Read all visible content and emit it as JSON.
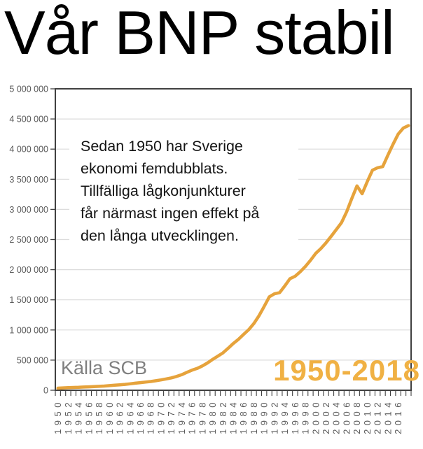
{
  "page": {
    "title": "Vår BNP stabil"
  },
  "chart": {
    "source_label": "Källa SCB",
    "period_label": "1950-2018",
    "annotation_lines": [
      "Sedan 1950 har Sverige",
      "ekonomi femdubblats.",
      "Tillfälliga lågkonjunkturer",
      "får närmast ingen effekt på",
      "den långa utvecklingen."
    ],
    "colors": {
      "line": "#E6A33C",
      "period_text": "#F0B144",
      "grid": "#DCDCDC",
      "axis": "#404040",
      "tick_label": "#595959",
      "source_text": "#7F7F7F"
    }
  },
  "chart_data": {
    "type": "line",
    "title": "Vår BNP stabil",
    "xlabel": "",
    "ylabel": "",
    "x": [
      1950,
      1951,
      1952,
      1953,
      1954,
      1955,
      1956,
      1957,
      1958,
      1959,
      1960,
      1961,
      1962,
      1963,
      1964,
      1965,
      1966,
      1967,
      1968,
      1969,
      1970,
      1971,
      1972,
      1973,
      1974,
      1975,
      1976,
      1977,
      1978,
      1979,
      1980,
      1981,
      1982,
      1983,
      1984,
      1985,
      1986,
      1987,
      1988,
      1989,
      1990,
      1991,
      1992,
      1993,
      1994,
      1995,
      1996,
      1997,
      1998,
      1999,
      2000,
      2001,
      2002,
      2003,
      2004,
      2005,
      2006,
      2007,
      2008,
      2009,
      2010,
      2011,
      2012,
      2013,
      2014,
      2015,
      2016,
      2017,
      2018
    ],
    "series": [
      {
        "name": "BNP",
        "values": [
          35000,
          40000,
          44000,
          46000,
          49000,
          53000,
          57000,
          61000,
          65000,
          70000,
          76000,
          83000,
          90000,
          97000,
          107000,
          117000,
          127000,
          136000,
          145000,
          158000,
          172000,
          188000,
          205000,
          228000,
          258000,
          297000,
          333000,
          362000,
          402000,
          452000,
          512000,
          565000,
          620000,
          695000,
          775000,
          845000,
          925000,
          1005000,
          1105000,
          1235000,
          1390000,
          1550000,
          1600000,
          1620000,
          1730000,
          1850000,
          1890000,
          1965000,
          2055000,
          2155000,
          2270000,
          2350000,
          2445000,
          2555000,
          2665000,
          2780000,
          2960000,
          3180000,
          3390000,
          3260000,
          3460000,
          3650000,
          3690000,
          3710000,
          3900000,
          4080000,
          4250000,
          4350000,
          4390000
        ]
      }
    ],
    "ylim": [
      0,
      5000000
    ],
    "ytick_step": 500000,
    "ytick_labels": [
      "0",
      "500 000",
      "1 000 000",
      "1 500 000",
      "2 000 000",
      "2 500 000",
      "3 000 000",
      "3 500 000",
      "4 000 000",
      "4 500 000",
      "5 000 000"
    ],
    "xtick_labels": [
      "1950",
      "1952",
      "1954",
      "1956",
      "1958",
      "1960",
      "1962",
      "1964",
      "1966",
      "1968",
      "1970",
      "1972",
      "1974",
      "1976",
      "1978",
      "1980",
      "1982",
      "1984",
      "1986",
      "1988",
      "1990",
      "1992",
      "1994",
      "1996",
      "1998",
      "2000",
      "2002",
      "2004",
      "2006",
      "2008",
      "2010",
      "2012",
      "2014",
      "2016"
    ],
    "grid": true,
    "legend": "none"
  }
}
